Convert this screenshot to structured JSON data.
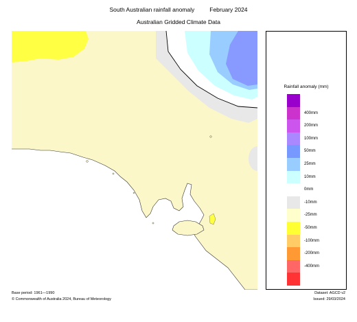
{
  "header": {
    "title": "South Australian rainfall anomaly",
    "period": "February 2024",
    "subtitle": "Australian Gridded Climate Data"
  },
  "legend": {
    "title": "Rainfall anomaly (mm)",
    "items": [
      {
        "label": "",
        "color": "#9900cc"
      },
      {
        "label": "400mm",
        "color": "#cc33cc"
      },
      {
        "label": "200mm",
        "color": "#cc55ee"
      },
      {
        "label": "100mm",
        "color": "#aa88ff"
      },
      {
        "label": "50mm",
        "color": "#7799ff"
      },
      {
        "label": "25mm",
        "color": "#99ccff"
      },
      {
        "label": "10mm",
        "color": "#ccffff"
      },
      {
        "label": "0mm",
        "color": "#ffffff"
      },
      {
        "label": "-10mm",
        "color": "#e8e8e8"
      },
      {
        "label": "-25mm",
        "color": "#ffffcc"
      },
      {
        "label": "-50mm",
        "color": "#ffff33"
      },
      {
        "label": "-100mm",
        "color": "#ffcc66"
      },
      {
        "label": "-200mm",
        "color": "#ff9933"
      },
      {
        "label": "-400mm",
        "color": "#ff6666"
      },
      {
        "label": "",
        "color": "#ff3333"
      }
    ]
  },
  "footer": {
    "base_period": "Base period: 1961—1990",
    "dataset": "Dataset: AGCD v2",
    "copyright": "© Commonwealth of Australia 2024, Bureau of Meteorology",
    "issued": "Issued: 29/03/2024"
  }
}
